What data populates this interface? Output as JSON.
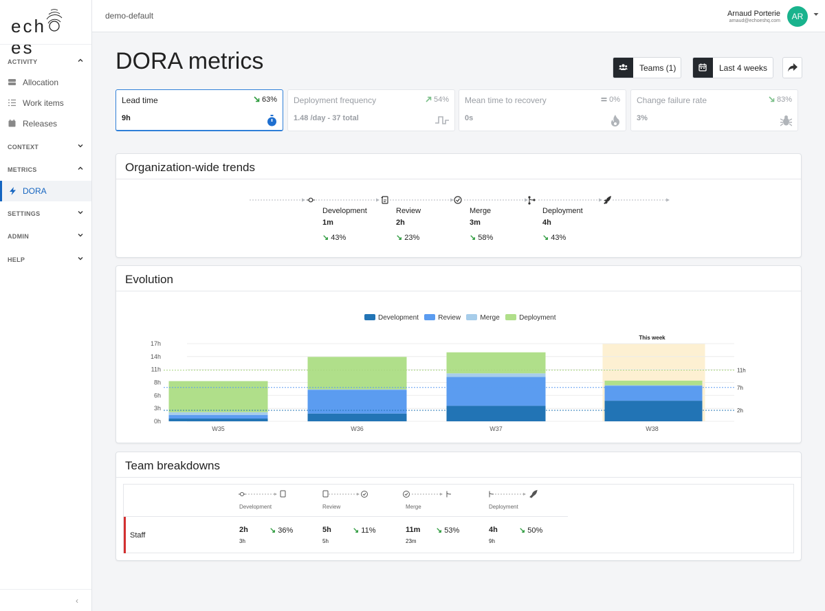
{
  "brand": {
    "logo_text": "ech",
    "logo_text2": "es",
    "accent": "#1565c0",
    "avatar_color": "#19b38d"
  },
  "sidebar": {
    "sections": [
      {
        "label": "ACTIVITY",
        "expanded": true
      },
      {
        "label": "CONTEXT",
        "expanded": false
      },
      {
        "label": "METRICS",
        "expanded": true
      },
      {
        "label": "SETTINGS",
        "expanded": false
      },
      {
        "label": "ADMIN",
        "expanded": false
      },
      {
        "label": "HELP",
        "expanded": false
      }
    ],
    "activity_items": [
      {
        "label": "Allocation",
        "icon": "allocation-icon"
      },
      {
        "label": "Work items",
        "icon": "list-icon"
      },
      {
        "label": "Releases",
        "icon": "calendar-icon"
      }
    ],
    "metrics_items": [
      {
        "label": "DORA",
        "icon": "bolt-icon",
        "active": true
      }
    ],
    "collapse_label": "‹"
  },
  "topbar": {
    "workspace": "demo-default",
    "user_name": "Arnaud Porterie",
    "user_email": "arnaud@echoeshq.com",
    "avatar_initials": "AR"
  },
  "header": {
    "title": "DORA metrics",
    "teams_button": "Teams (1)",
    "period_button": "Last 4 weeks"
  },
  "metrics": [
    {
      "title": "Lead time",
      "value": "9h",
      "delta": "63%",
      "trend": "down",
      "icon": "stopwatch-icon",
      "selected": true
    },
    {
      "title": "Deployment frequency",
      "value": "1.48 /day - 37 total",
      "delta": "54%",
      "trend": "up",
      "icon": "pulse-icon",
      "selected": false
    },
    {
      "title": "Mean time to recovery",
      "value": "0s",
      "delta": "0%",
      "trend": "flat",
      "icon": "fire-icon",
      "selected": false
    },
    {
      "title": "Change failure rate",
      "value": "3%",
      "delta": "83%",
      "trend": "down",
      "icon": "bug-icon",
      "selected": false
    }
  ],
  "trends": {
    "title": "Organization-wide trends",
    "steps": [
      {
        "name": "Development",
        "value": "1m",
        "delta": "43%"
      },
      {
        "name": "Review",
        "value": "2h",
        "delta": "23%"
      },
      {
        "name": "Merge",
        "value": "3m",
        "delta": "58%"
      },
      {
        "name": "Deployment",
        "value": "4h",
        "delta": "43%"
      }
    ]
  },
  "evolution": {
    "title": "Evolution"
  },
  "chart_data": {
    "type": "bar",
    "stacked": true,
    "categories": [
      "W35",
      "W36",
      "W37",
      "W38"
    ],
    "series": [
      {
        "name": "Development",
        "color": "#2274b5",
        "values": [
          0.6,
          1.7,
          3.4,
          4.5
        ]
      },
      {
        "name": "Review",
        "color": "#5b9cf0",
        "values": [
          0.8,
          5.2,
          6.3,
          3.3
        ]
      },
      {
        "name": "Merge",
        "color": "#a7cdea",
        "values": [
          0.6,
          0.1,
          0.8,
          0.1
        ]
      },
      {
        "name": "Deployment",
        "color": "#b0df8a",
        "values": [
          6.8,
          7.1,
          4.6,
          1.0
        ]
      }
    ],
    "yticks": [
      "0h",
      "3h",
      "6h",
      "8h",
      "11h",
      "14h",
      "17h"
    ],
    "ylim": [
      0,
      17
    ],
    "reference_lines": [
      {
        "label": "11h",
        "value": 11.2,
        "color": "#a8d67f"
      },
      {
        "label": "7h",
        "value": 7.4,
        "color": "#5b9cf0"
      },
      {
        "label": "2h",
        "value": 2.4,
        "color": "#2274b5"
      }
    ],
    "highlight": {
      "category": "W38",
      "label": "This week"
    },
    "legend_position": "top-center"
  },
  "breakdowns": {
    "title": "Team breakdowns",
    "headers": [
      "Development",
      "Review",
      "Merge",
      "Deployment"
    ],
    "rows": [
      {
        "team": "Staff",
        "cells": [
          {
            "value": "2h",
            "sub": "3h",
            "delta": "36%"
          },
          {
            "value": "5h",
            "sub": "5h",
            "delta": "11%"
          },
          {
            "value": "11m",
            "sub": "23m",
            "delta": "53%"
          },
          {
            "value": "4h",
            "sub": "9h",
            "delta": "50%"
          }
        ]
      }
    ]
  }
}
